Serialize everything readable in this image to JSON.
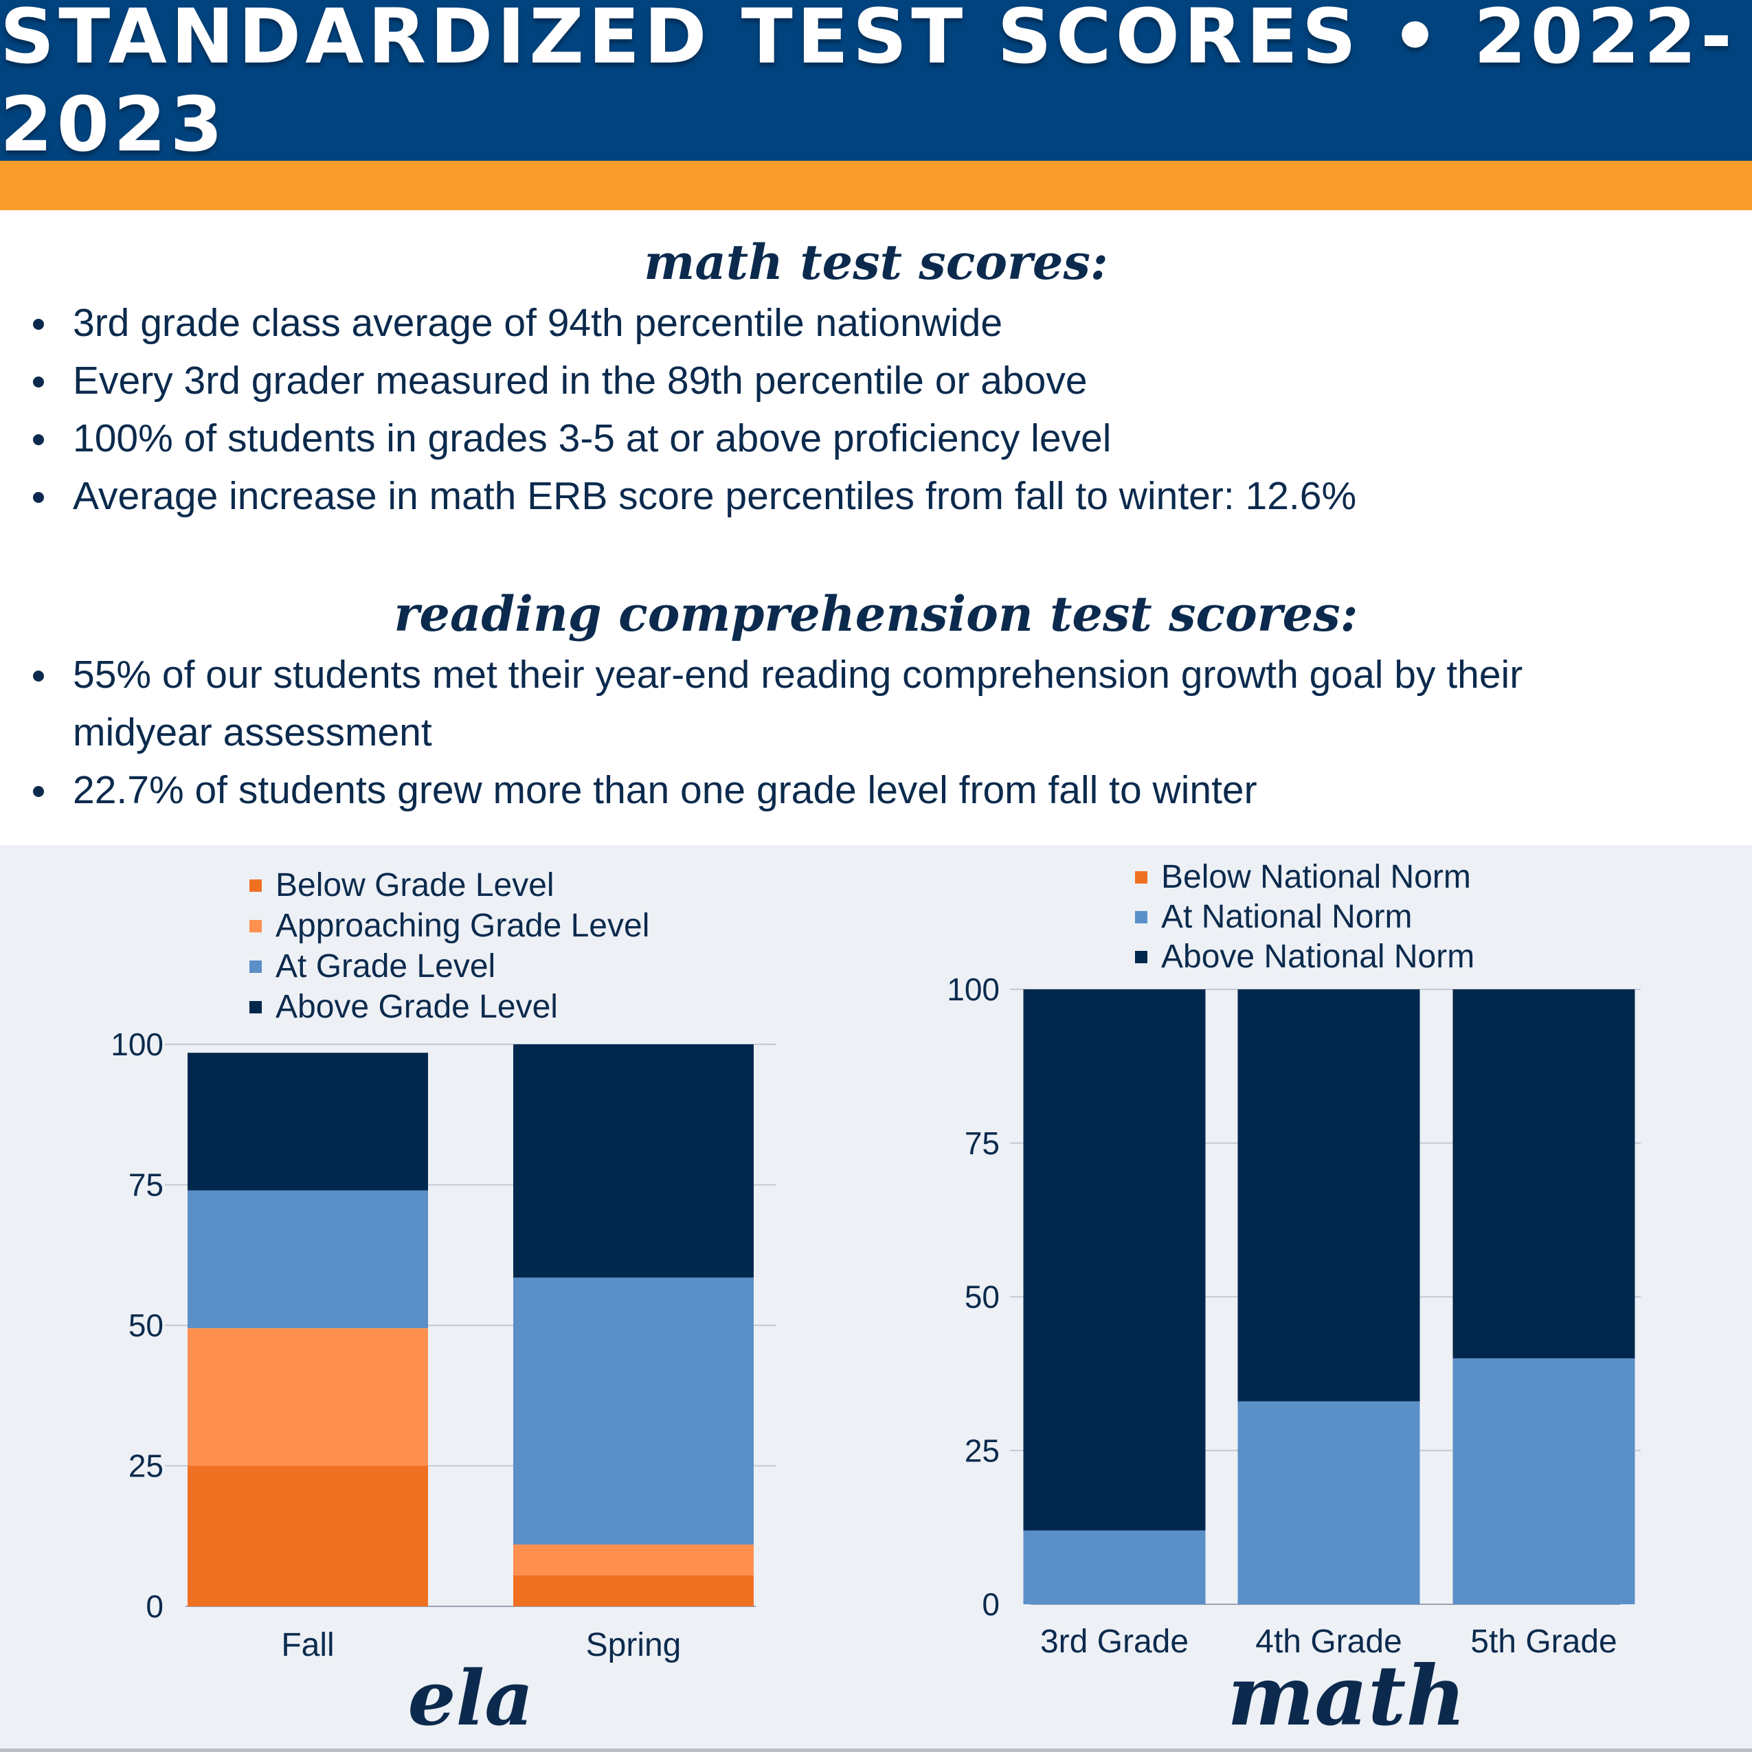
{
  "header": {
    "title": "STANDARDIZED TEST SCORES • 2022-2023"
  },
  "colors": {
    "header_bg": "#00437e",
    "accent_orange": "#f89c2b",
    "below": "#f07022",
    "approaching": "#ff9050",
    "at": "#5b8fc7",
    "above": "#00284d"
  },
  "math_section": {
    "title": "math test scores:",
    "bullets": [
      "3rd grade class average of 94th percentile nationwide",
      "Every 3rd grader measured in the 89th percentile or above",
      "100% of students in grades 3-5 at or above proficiency level",
      "Average increase in math ERB score percentiles from fall to winter: 12.6%"
    ]
  },
  "reading_section": {
    "title": "reading comprehension test scores:",
    "bullets": [
      "55% of our students met their year-end reading comprehension growth goal by their midyear assessment",
      "22.7% of students grew more than one grade level from fall to winter"
    ]
  },
  "chart_data": [
    {
      "type": "bar",
      "stacked": true,
      "title": "ela",
      "categories": [
        "Fall",
        "Spring"
      ],
      "series": [
        {
          "name": "Below Grade Level",
          "color": "#f07022",
          "values": [
            25,
            5.5
          ]
        },
        {
          "name": "Approaching Grade Level",
          "color": "#ff9050",
          "values": [
            24.5,
            5.5
          ]
        },
        {
          "name": "At Grade Level",
          "color": "#5b8fc7",
          "values": [
            24.5,
            47.5
          ]
        },
        {
          "name": "Above Grade Level",
          "color": "#00284d",
          "values": [
            24.5,
            41.5
          ]
        }
      ],
      "yticks": [
        0,
        25,
        50,
        75,
        100
      ],
      "ylim": [
        0,
        100
      ],
      "legend": "top"
    },
    {
      "type": "bar",
      "stacked": true,
      "title": "math",
      "categories": [
        "3rd Grade",
        "4th Grade",
        "5th Grade"
      ],
      "series": [
        {
          "name": "Below National Norm",
          "color": "#f07022",
          "values": [
            0,
            0,
            0
          ]
        },
        {
          "name": "At National Norm",
          "color": "#5b8fc7",
          "values": [
            12,
            33,
            40
          ]
        },
        {
          "name": "Above National Norm",
          "color": "#00284d",
          "values": [
            88,
            67,
            60
          ]
        }
      ],
      "yticks": [
        0,
        25,
        50,
        75,
        100
      ],
      "ylim": [
        0,
        100
      ],
      "legend": "top"
    }
  ]
}
